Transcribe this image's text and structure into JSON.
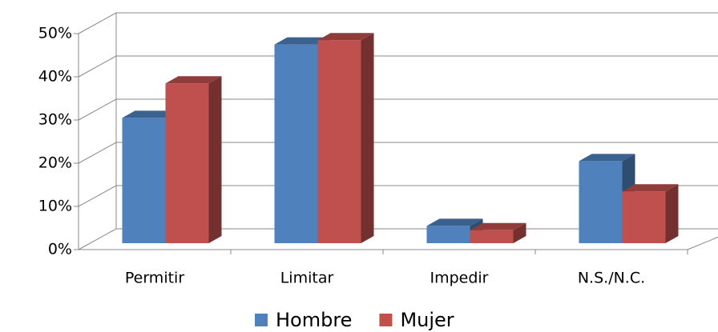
{
  "chart_data": {
    "type": "bar3d",
    "categories": [
      "Permitir",
      "Limitar",
      "Impedir",
      "N.S./N.C."
    ],
    "series": [
      {
        "name": "Hombre",
        "color": "#4f81bd",
        "values": [
          29,
          46,
          4,
          19
        ]
      },
      {
        "name": "Mujer",
        "color": "#c0504d",
        "values": [
          37,
          47,
          3,
          12
        ]
      }
    ],
    "ylim": [
      0,
      50
    ],
    "yticks": [
      {
        "value": 0,
        "label": "0%"
      },
      {
        "value": 10,
        "label": "10%"
      },
      {
        "value": 20,
        "label": "20%"
      },
      {
        "value": 30,
        "label": "30%"
      },
      {
        "value": 40,
        "label": "40%"
      },
      {
        "value": 50,
        "label": "50%"
      }
    ],
    "grid": true,
    "legend": "bottom"
  }
}
